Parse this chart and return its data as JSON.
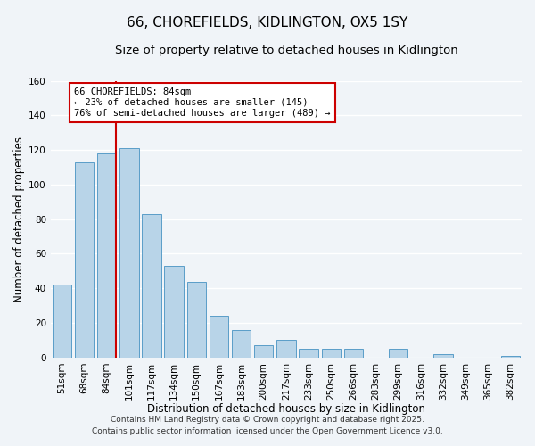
{
  "title": "66, CHOREFIELDS, KIDLINGTON, OX5 1SY",
  "subtitle": "Size of property relative to detached houses in Kidlington",
  "xlabel": "Distribution of detached houses by size in Kidlington",
  "ylabel": "Number of detached properties",
  "bar_labels": [
    "51sqm",
    "68sqm",
    "84sqm",
    "101sqm",
    "117sqm",
    "134sqm",
    "150sqm",
    "167sqm",
    "183sqm",
    "200sqm",
    "217sqm",
    "233sqm",
    "250sqm",
    "266sqm",
    "283sqm",
    "299sqm",
    "316sqm",
    "332sqm",
    "349sqm",
    "365sqm",
    "382sqm"
  ],
  "bar_values": [
    42,
    113,
    118,
    121,
    83,
    53,
    44,
    24,
    16,
    7,
    10,
    5,
    5,
    5,
    0,
    5,
    0,
    2,
    0,
    0,
    1
  ],
  "bar_color": "#b8d4e8",
  "bar_edge_color": "#5a9dc8",
  "highlight_index": 2,
  "highlight_line_color": "#cc0000",
  "ylim": [
    0,
    160
  ],
  "yticks": [
    0,
    20,
    40,
    60,
    80,
    100,
    120,
    140,
    160
  ],
  "annotation_title": "66 CHOREFIELDS: 84sqm",
  "annotation_line1": "← 23% of detached houses are smaller (145)",
  "annotation_line2": "76% of semi-detached houses are larger (489) →",
  "annotation_box_color": "#ffffff",
  "annotation_box_edge": "#cc0000",
  "footer_line1": "Contains HM Land Registry data © Crown copyright and database right 2025.",
  "footer_line2": "Contains public sector information licensed under the Open Government Licence v3.0.",
  "background_color": "#f0f4f8",
  "grid_color": "#ffffff",
  "title_fontsize": 11,
  "subtitle_fontsize": 9.5,
  "axis_label_fontsize": 8.5,
  "tick_fontsize": 7.5,
  "annotation_fontsize": 7.5,
  "footer_fontsize": 6.5
}
